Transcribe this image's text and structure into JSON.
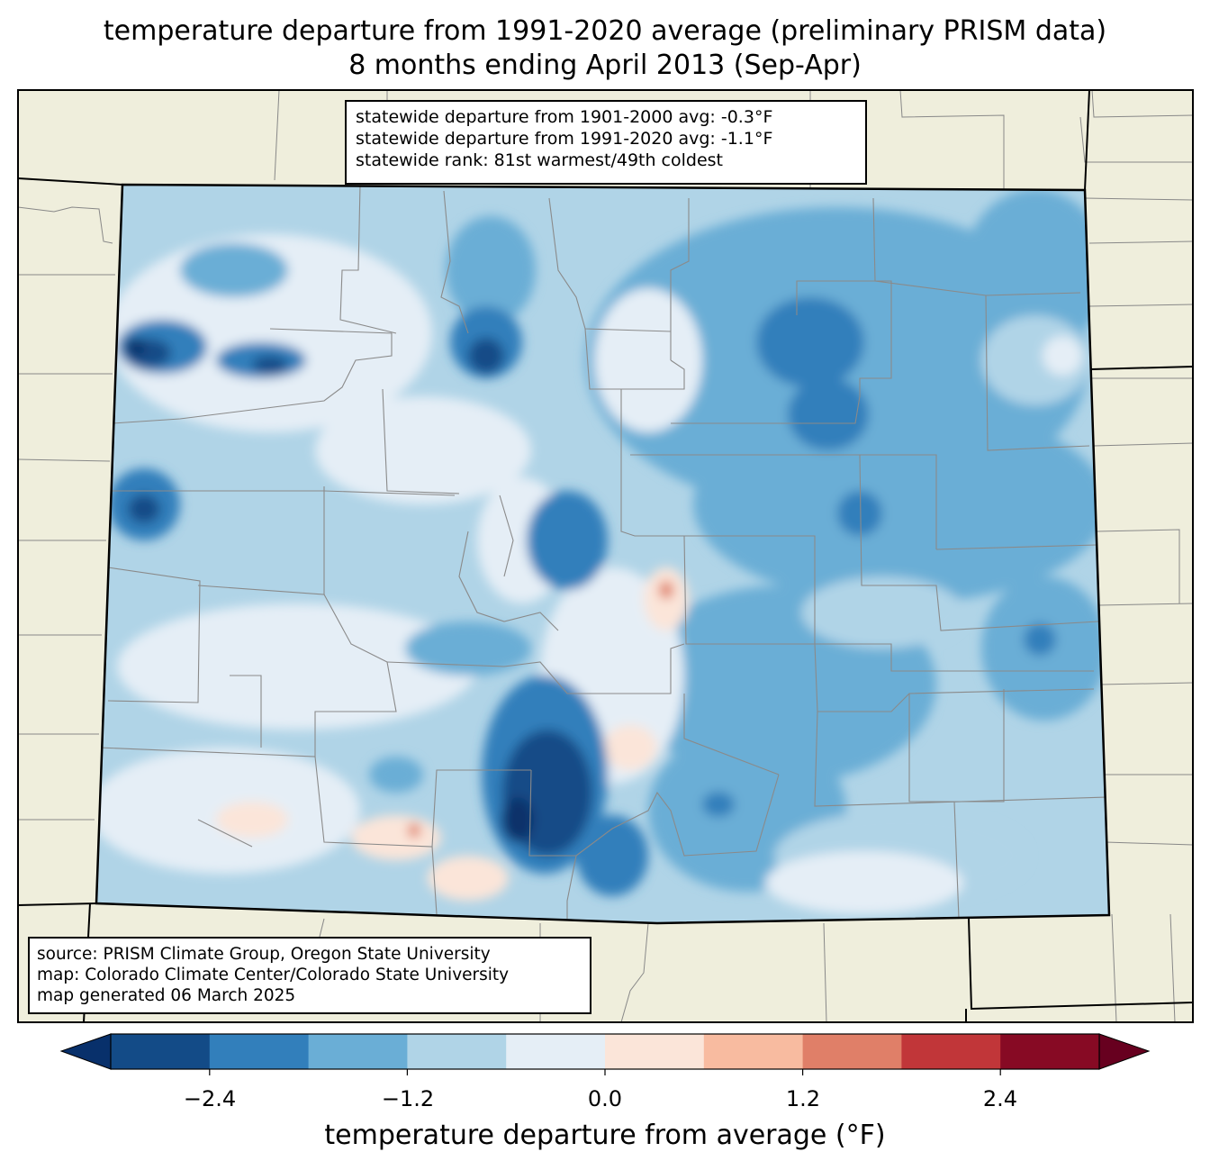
{
  "title": {
    "line1": "temperature departure from 1991-2020 average (preliminary PRISM data)",
    "line2": "8 months ending April 2013 (Sep-Apr)"
  },
  "stats": {
    "line1": "statewide departure from 1901-2000 avg: -0.3°F",
    "line2": "statewide departure from 1991-2020 avg: -1.1°F",
    "line3": "statewide rank: 81st warmest/49th coldest"
  },
  "source": {
    "line1": "source: PRISM Climate Group, Oregon State University",
    "line2": "map: Colorado Climate Center/Colorado State University",
    "line3": "map generated 06 March 2025"
  },
  "colorbar": {
    "label": "temperature departure from average (°F)",
    "ticks": [
      "−2.4",
      "−1.2",
      "0.0",
      "1.2",
      "2.4"
    ],
    "colors": [
      "#08306b",
      "#134b87",
      "#327fbb",
      "#6aaed6",
      "#b0d4e7",
      "#e5eef6",
      "#fbe5d9",
      "#f8bba0",
      "#e07f68",
      "#c13639",
      "#870a24",
      "#67001f"
    ]
  },
  "chart_data": {
    "type": "heatmap",
    "title": "temperature departure from 1991-2020 average (preliminary PRISM data)",
    "subtitle": "8 months ending April 2013 (Sep-Apr)",
    "region": "Colorado",
    "units": "°F",
    "colorbar_label": "temperature departure from average (°F)",
    "levels": [
      -3.0,
      -2.4,
      -1.8,
      -1.2,
      -0.6,
      0.0,
      0.6,
      1.2,
      1.8,
      2.4,
      3.0
    ],
    "tick_values": [
      -2.4,
      -1.2,
      0.0,
      1.2,
      2.4
    ],
    "extend": "both",
    "statewide_departure_1901_2000": -0.3,
    "statewide_departure_1991_2020": -1.1
  }
}
